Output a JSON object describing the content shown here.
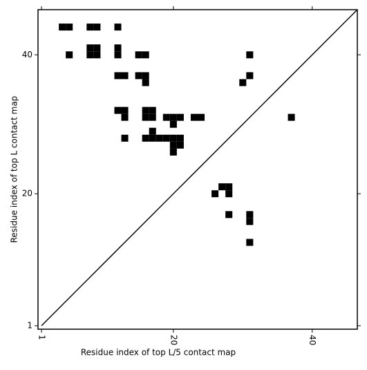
{
  "chart_data": {
    "type": "scatter",
    "marker": "square",
    "color": "#000000",
    "xlabel": "Residue index of top L/5 contact map",
    "ylabel": "Residue index of top L contact map",
    "x": [
      4,
      5,
      8,
      9,
      12,
      8,
      9,
      12,
      5,
      8,
      9,
      12,
      15,
      16,
      31,
      12,
      13,
      15,
      16,
      31,
      16,
      30,
      12,
      13,
      16,
      17,
      13,
      16,
      17,
      19,
      20,
      21,
      23,
      24,
      37,
      20,
      17,
      13,
      16,
      17,
      18,
      19,
      20,
      21,
      20,
      21,
      20,
      27,
      28,
      26,
      28,
      28,
      31,
      31,
      31
    ],
    "y": [
      44,
      44,
      44,
      44,
      44,
      41,
      41,
      41,
      40,
      40,
      40,
      40,
      40,
      40,
      40,
      37,
      37,
      37,
      37,
      37,
      36,
      36,
      32,
      32,
      32,
      32,
      31,
      31,
      31,
      31,
      31,
      31,
      31,
      31,
      31,
      30,
      29,
      28,
      28,
      28,
      28,
      28,
      28,
      28,
      27,
      27,
      26,
      21,
      21,
      20,
      20,
      17,
      17,
      16,
      13
    ],
    "xlim": [
      0.5,
      46.5
    ],
    "ylim": [
      0.5,
      46.5
    ],
    "xticks": [
      1,
      20,
      40
    ],
    "yticks": [
      1,
      20,
      40
    ],
    "diagonal": true
  }
}
